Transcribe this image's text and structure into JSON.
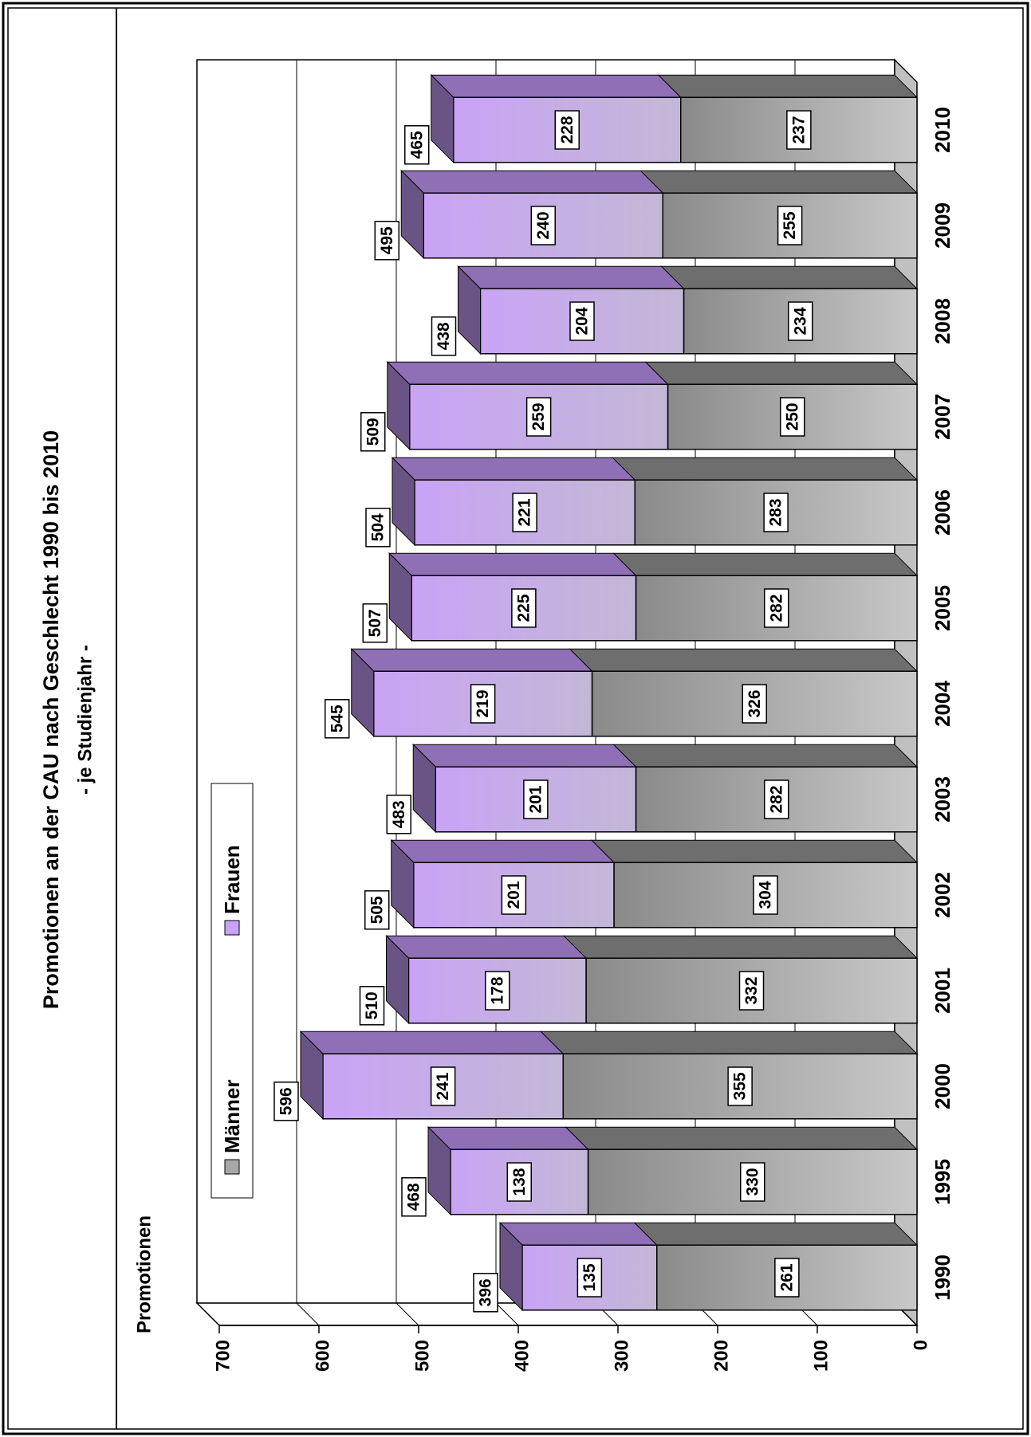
{
  "chart_data": {
    "type": "stacked-bar-3d",
    "title": "Promotionen an der CAU nach Geschlecht 1990 bis 2010",
    "subtitle": "- je Studienjahr -",
    "y_label": "Promotionen",
    "categories": [
      "1990",
      "1995",
      "2000",
      "2001",
      "2002",
      "2003",
      "2004",
      "2005",
      "2006",
      "2007",
      "2008",
      "2009",
      "2010"
    ],
    "series": [
      {
        "name": "Männer",
        "color": "#a8a8a8",
        "values": [
          261,
          330,
          355,
          332,
          304,
          282,
          326,
          282,
          283,
          250,
          234,
          255,
          237
        ]
      },
      {
        "name": "Frauen",
        "color": "#c9a3f5",
        "values": [
          135,
          138,
          241,
          178,
          201,
          201,
          219,
          225,
          221,
          259,
          204,
          240,
          228
        ]
      }
    ],
    "totals": [
      396,
      468,
      596,
      510,
      505,
      483,
      545,
      507,
      504,
      509,
      438,
      495,
      465
    ],
    "ylim": [
      0,
      700
    ],
    "yticks": [
      0,
      100,
      200,
      300,
      400,
      500,
      600,
      700
    ],
    "grid": true
  }
}
